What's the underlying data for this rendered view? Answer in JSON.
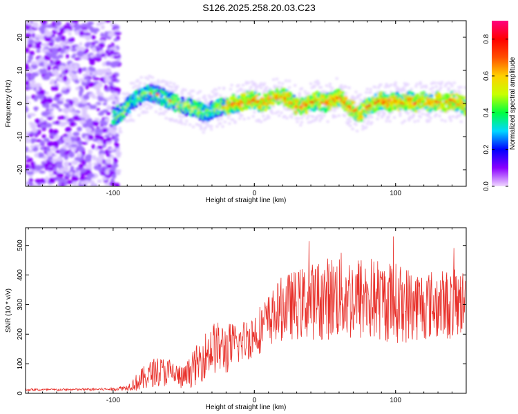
{
  "title": "S126.2025.258.20.03.C23",
  "colors": {
    "snr_line": "#e8302a",
    "spec_low": "#b59cf0",
    "spec_mid": "#6a1fff"
  },
  "chart_data": [
    {
      "type": "heatmap",
      "name": "spectrogram",
      "xlabel": "Height of straight line (km)",
      "ylabel": "Frequency (Hz)",
      "xlim": [
        -162,
        150
      ],
      "ylim": [
        -25,
        25
      ],
      "xticks": [
        -100,
        0,
        100
      ],
      "xtick_labels": [
        "-100",
        "0",
        "100"
      ],
      "yticks": [
        -20,
        -10,
        0,
        10,
        20
      ],
      "ytick_labels": [
        "-20",
        "-10",
        "0",
        "10",
        "20"
      ],
      "ridge": {
        "description_free": true,
        "x": [
          -100,
          -95,
          -90,
          -85,
          -80,
          -75,
          -70,
          -65,
          -60,
          -55,
          -50,
          -45,
          -40,
          -35,
          -30,
          -25,
          -20,
          -15,
          -10,
          -5,
          0,
          5,
          10,
          15,
          20,
          25,
          30,
          35,
          40,
          45,
          50,
          55,
          60,
          65,
          70,
          75,
          80,
          85,
          90,
          95,
          100,
          105,
          110,
          115,
          120,
          125,
          130,
          135,
          140,
          145,
          150
        ],
        "y": [
          -4,
          -3,
          -1,
          1,
          2,
          3,
          3,
          2,
          1,
          0,
          -1,
          -1,
          -2,
          -3,
          -2,
          -1,
          -1,
          0,
          0,
          1,
          1,
          0,
          1,
          2,
          2,
          1,
          -1,
          -1,
          0,
          1,
          0,
          1,
          2,
          0,
          -2,
          -3,
          -1,
          0,
          1,
          0,
          1,
          0,
          1,
          0,
          1,
          0,
          1,
          0,
          1,
          0,
          -1
        ]
      },
      "noise_region_x": [
        -162,
        -100
      ],
      "colorbar": {
        "label": "Normalized spectral amplitude",
        "range": [
          0,
          0.9
        ],
        "ticks": [
          0.0,
          0.2,
          0.4,
          0.6,
          0.8
        ],
        "tick_labels": [
          "0.0",
          "0.2",
          "0.4",
          "0.6",
          "0.8"
        ],
        "colormap": [
          "#f0d8ff",
          "#8a00ff",
          "#0000ff",
          "#00d8ff",
          "#00ff40",
          "#c8ff00",
          "#ffd000",
          "#ff5000",
          "#ff0000",
          "#ff0080"
        ]
      }
    },
    {
      "type": "line",
      "name": "snr",
      "xlabel": "Height of straight line (km)",
      "ylabel": "SNR (10 * v/v)",
      "xlim": [
        -162,
        150
      ],
      "ylim": [
        0,
        560
      ],
      "xticks": [
        -100,
        0,
        100
      ],
      "xtick_labels": [
        "-100",
        "0",
        "100"
      ],
      "yticks": [
        0,
        100,
        200,
        300,
        400,
        500
      ],
      "ytick_labels": [
        "0",
        "100",
        "200",
        "300",
        "400",
        "500"
      ],
      "envelope": {
        "x": [
          -162,
          -140,
          -120,
          -100,
          -90,
          -80,
          -70,
          -60,
          -50,
          -40,
          -30,
          -20,
          -10,
          0,
          10,
          20,
          30,
          40,
          50,
          60,
          70,
          80,
          90,
          100,
          110,
          120,
          130,
          140,
          150
        ],
        "mean": [
          12,
          12,
          13,
          14,
          20,
          45,
          75,
          70,
          50,
          100,
          155,
          150,
          170,
          200,
          245,
          290,
          300,
          310,
          320,
          330,
          320,
          320,
          315,
          305,
          300,
          300,
          300,
          300,
          310
        ],
        "spread": [
          4,
          4,
          4,
          5,
          10,
          40,
          50,
          50,
          40,
          70,
          90,
          90,
          70,
          80,
          90,
          110,
          120,
          130,
          140,
          150,
          150,
          150,
          140,
          140,
          130,
          120,
          120,
          120,
          110
        ]
      }
    }
  ]
}
